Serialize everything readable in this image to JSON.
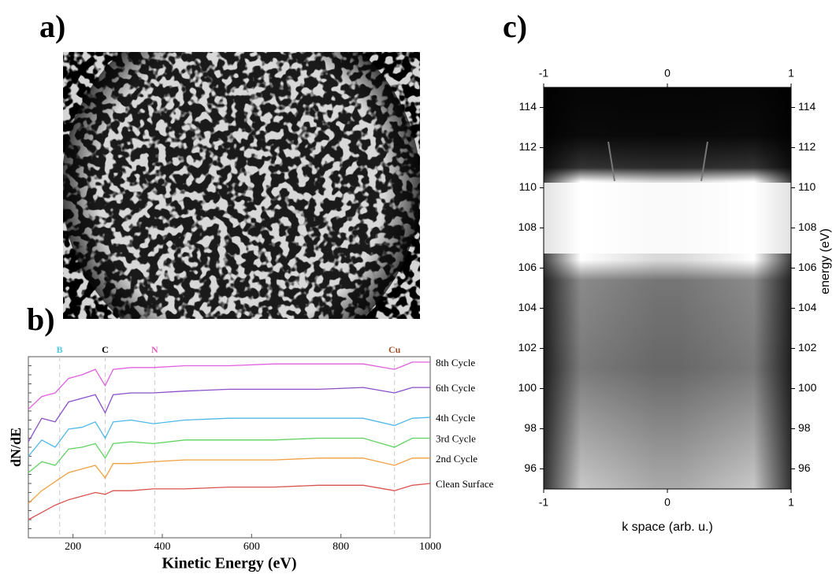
{
  "panel_labels": [
    "a)",
    "b)",
    "c)"
  ],
  "chart_data": [
    {
      "type": "line",
      "xlabel": "Kinetic Energy (eV)",
      "ylabel": "dN/dE",
      "xlim": [
        100,
        1000
      ],
      "ylim": [
        0,
        10
      ],
      "xticks": [
        200,
        400,
        600,
        800,
        1000
      ],
      "x": [
        100,
        130,
        160,
        190,
        220,
        250,
        272,
        290,
        330,
        380,
        450,
        550,
        650,
        750,
        850,
        920,
        960,
        1000
      ],
      "markers": [
        {
          "label": "B",
          "x": 170,
          "color": "#4fc8e0"
        },
        {
          "label": "C",
          "x": 272,
          "color": "#000000"
        },
        {
          "label": "N",
          "x": 383,
          "color": "#e060c0"
        },
        {
          "label": "Cu",
          "x": 920,
          "color": "#a0522d"
        }
      ],
      "series": [
        {
          "name": "Clean Surface",
          "color": "#d9534f",
          "values": [
            1.0,
            1.4,
            1.8,
            2.1,
            2.3,
            2.5,
            2.4,
            2.6,
            2.6,
            2.7,
            2.7,
            2.8,
            2.8,
            2.9,
            2.9,
            2.6,
            2.9,
            3.0
          ]
        },
        {
          "name": "2nd Cycle",
          "color": "#f0a040",
          "values": [
            1.9,
            2.6,
            3.1,
            3.6,
            3.8,
            4.0,
            3.3,
            4.1,
            4.1,
            4.2,
            4.3,
            4.3,
            4.3,
            4.4,
            4.4,
            4.0,
            4.4,
            4.4
          ]
        },
        {
          "name": "3rd Cycle",
          "color": "#5fd35f",
          "values": [
            3.6,
            4.2,
            4.0,
            4.9,
            5.0,
            5.2,
            4.4,
            5.2,
            5.3,
            5.2,
            5.4,
            5.4,
            5.4,
            5.5,
            5.5,
            5.0,
            5.5,
            5.5
          ]
        },
        {
          "name": "4th Cycle",
          "color": "#4fb8e8",
          "values": [
            4.5,
            5.4,
            5.0,
            6.0,
            6.1,
            6.4,
            5.5,
            6.4,
            6.5,
            6.3,
            6.5,
            6.6,
            6.6,
            6.6,
            6.6,
            6.2,
            6.6,
            6.65
          ]
        },
        {
          "name": "6th Cycle",
          "color": "#8a4fc8",
          "values": [
            5.3,
            6.6,
            6.4,
            7.5,
            7.7,
            7.9,
            6.9,
            7.9,
            8.0,
            8.0,
            8.1,
            8.2,
            8.2,
            8.2,
            8.3,
            8.0,
            8.3,
            8.3
          ]
        },
        {
          "name": "8th Cycle",
          "color": "#e060e0",
          "values": [
            7.1,
            7.8,
            8.0,
            8.8,
            9.0,
            9.3,
            8.4,
            9.3,
            9.4,
            9.4,
            9.5,
            9.5,
            9.6,
            9.6,
            9.6,
            9.3,
            9.7,
            9.7
          ]
        }
      ]
    },
    {
      "type": "image",
      "xlabel": "k space (arb. u.)",
      "ylabel": "energy (eV)",
      "xlim": [
        -1,
        1
      ],
      "ylim": [
        95,
        115
      ],
      "xticks": [
        -1,
        0,
        1
      ],
      "yticks": [
        96,
        98,
        100,
        102,
        104,
        106,
        108,
        110,
        112,
        114
      ]
    }
  ]
}
